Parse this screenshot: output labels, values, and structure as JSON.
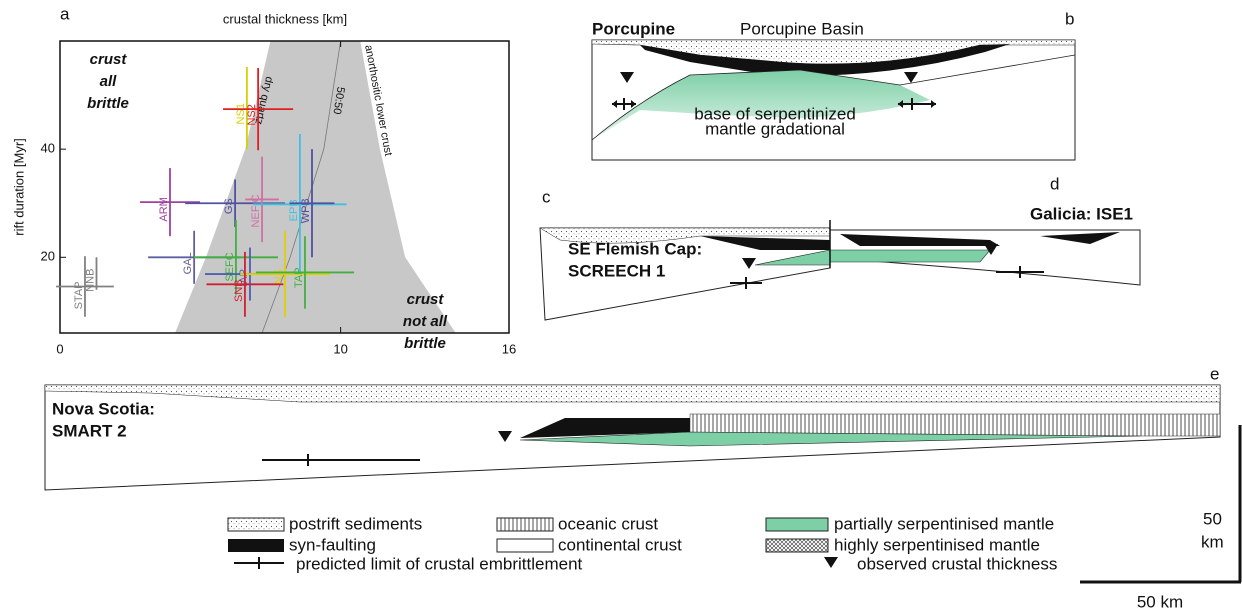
{
  "chart_data": {
    "type": "errorbar",
    "panel_label": "a",
    "top_axis_label": "crustal thickness [km]",
    "ylabel": "rift duration [Myr]",
    "xlim": [
      0,
      16
    ],
    "ylim": [
      6,
      60
    ],
    "xticks": [
      0,
      10,
      16
    ],
    "yticks": [
      20,
      40
    ],
    "annotations": [
      [
        "crust",
        "all",
        "brittle"
      ],
      [
        "crust",
        "not all",
        "brittle"
      ]
    ],
    "curves": [
      {
        "name": "dry quartz",
        "x": [
          4.1,
          5.2,
          6.6,
          7.5
        ],
        "y": [
          6,
          20,
          40,
          60
        ]
      },
      {
        "name": "50:50",
        "x": [
          7.2,
          8.2,
          9.4,
          10.0
        ],
        "y": [
          6,
          20,
          40,
          60
        ]
      },
      {
        "name": "anorthositic lower crust",
        "x": [
          14.1,
          12.3,
          11.4,
          10.7
        ],
        "y": [
          6,
          20,
          40,
          60
        ]
      }
    ],
    "band_color": "#c8c8c8",
    "series": [
      {
        "name": "NS1",
        "color": "#d2d200",
        "x": 6.66,
        "xerr": 0,
        "y": 47.6,
        "yerr": 7.6
      },
      {
        "name": "NS2",
        "color": "#e02020",
        "x": 7.06,
        "xerr": 1.25,
        "y": 47.4,
        "yerr": 7.6
      },
      {
        "name": "ARM",
        "color": "#a040a0",
        "x": 3.92,
        "xerr": 1.07,
        "y": 30.2,
        "yerr": 6.3
      },
      {
        "name": "GS",
        "color": "#5050a0",
        "x": 6.24,
        "xerr": 1.78,
        "y": 30,
        "yerr": 4.4
      },
      {
        "name": "NEF C",
        "color": "#d070a0",
        "x": 7.2,
        "xerr": 0.6,
        "y": 30.7,
        "yerr": 7.9
      },
      {
        "name": "EPB",
        "color": "#40c0e0",
        "x": 8.55,
        "xerr": 1.66,
        "y": 29.8,
        "yerr": 13
      },
      {
        "name": "WPB",
        "color": "#5050a0",
        "x": 8.98,
        "xerr": 0.8,
        "y": 30,
        "yerr": 10
      },
      {
        "name": "GAL",
        "color": "#6060a0",
        "x": 4.78,
        "xerr": 1.64,
        "y": 20,
        "yerr": 4.9
      },
      {
        "name": "SEFC",
        "color": "#40b040",
        "x": 6.27,
        "xerr": 1.5,
        "y": 20,
        "yerr": 6.9
      },
      {
        "name": "IAP",
        "color": "#5060b0",
        "x": 6.77,
        "xerr": 1.6,
        "y": 16.9,
        "yerr": 4.9
      },
      {
        "name": "NS",
        "color": "#e0d000",
        "x": 8.02,
        "xerr": 1.6,
        "y": 16.9,
        "yerr": 8
      },
      {
        "name": "TAP",
        "color": "#40b040",
        "x": 8.73,
        "xerr": 1.75,
        "y": 17.2,
        "yerr": 6.7
      },
      {
        "name": "SNB",
        "color": "#d02030",
        "x": 6.59,
        "xerr": 1.37,
        "y": 15,
        "yerr": 6
      },
      {
        "name": "STAP",
        "color": "#808080",
        "x": 0.89,
        "xerr": 1.03,
        "y": 14.6,
        "yerr": 5.6
      },
      {
        "name": "NNB",
        "color": "#808080",
        "x": 1.3,
        "xerr": 0,
        "y": 17,
        "yerr": 3
      }
    ]
  },
  "diagrams": [
    {
      "label": "b",
      "titles": [
        "Porcupine",
        "Porcupine Basin"
      ],
      "notes": [
        "base of serpentinized",
        "mantle gradational"
      ]
    },
    {
      "label": "c",
      "titles": [
        "SE Flemish Cap:",
        "SCREECH 1"
      ]
    },
    {
      "label": "d",
      "titles": [
        "Galicia: ISE1"
      ]
    },
    {
      "label": "e",
      "titles": [
        "Nova Scotia:",
        "SMART 2"
      ]
    }
  ],
  "legend": [
    "postrift sediments",
    "syn-faulting",
    "oceanic crust",
    "continental crust",
    "partially serpentinised mantle",
    "highly serpentinised mantle",
    "predicted limit of crustal embrittlement",
    "observed crustal thickness"
  ],
  "scale_bars": {
    "vertical": [
      "50",
      "km"
    ],
    "horizontal": "50 km"
  }
}
